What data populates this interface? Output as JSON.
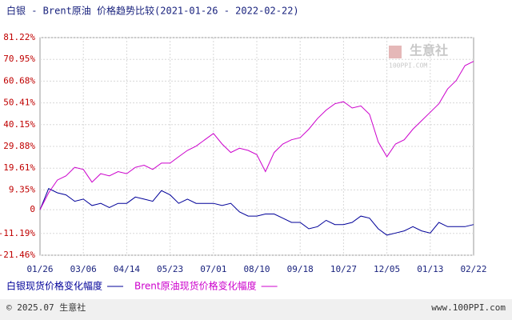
{
  "chart_data": {
    "type": "line",
    "title": "白银 - Brent原油 价格趋势比较(2021-01-26 - 2022-02-22)",
    "watermark": "生意社",
    "watermark_sub": "100PPI.COM",
    "footer_left": "© 2025.07 生意社",
    "footer_right": "www.100PPI.com",
    "categories": [
      "01/26",
      null,
      null,
      null,
      null,
      "03/06",
      null,
      null,
      null,
      null,
      "04/14",
      null,
      null,
      null,
      null,
      "05/23",
      null,
      null,
      null,
      null,
      "07/01",
      null,
      null,
      null,
      null,
      "08/10",
      null,
      null,
      null,
      null,
      "09/18",
      null,
      null,
      null,
      null,
      "10/27",
      null,
      null,
      null,
      null,
      "12/05",
      null,
      null,
      null,
      null,
      "01/13",
      null,
      null,
      null,
      null,
      "02/22"
    ],
    "ylim": [
      -21.46,
      81.22
    ],
    "yticks": [
      {
        "value": -21.46,
        "label": "-21.46%"
      },
      {
        "value": -11.19,
        "label": "-11.19%"
      },
      0,
      {
        "value": 9.35,
        "label": "9.35%"
      },
      {
        "value": 19.61,
        "label": "19.61%"
      },
      {
        "value": 29.88,
        "label": "29.88%"
      },
      {
        "value": 40.15,
        "label": "40.15%"
      },
      {
        "value": 50.41,
        "label": "50.41%"
      },
      {
        "value": 60.68,
        "label": "60.68%"
      },
      {
        "value": 70.95,
        "label": "70.95%"
      },
      {
        "value": 81.22,
        "label": "81.22%"
      }
    ],
    "grid": true,
    "series": [
      {
        "name": "白银现货价格变化幅度",
        "color": "#000099",
        "values": [
          0,
          10,
          8,
          7,
          4,
          5,
          2,
          3,
          1,
          3,
          3,
          6,
          5,
          4,
          9,
          7,
          3,
          5,
          3,
          3,
          3,
          2,
          3,
          -1,
          -3,
          -3,
          -2,
          -2,
          -4,
          -6,
          -6,
          -9,
          -8,
          -5,
          -7,
          -7,
          -6,
          -3,
          -4,
          -9,
          -12,
          -11,
          -10,
          -8,
          -10,
          -11,
          -6,
          -8,
          -8,
          -8,
          -7
        ]
      },
      {
        "name": "Brent原油现货价格变化幅度",
        "color": "#cc00cc",
        "values": [
          0,
          8,
          14,
          16,
          20,
          19,
          13,
          17,
          16,
          18,
          17,
          20,
          21,
          19,
          22,
          22,
          25,
          28,
          30,
          33,
          36,
          31,
          27,
          29,
          28,
          26,
          18,
          27,
          31,
          33,
          34,
          38,
          43,
          47,
          50,
          51,
          48,
          49,
          45,
          32,
          25,
          31,
          33,
          38,
          42,
          46,
          50,
          57,
          61,
          68,
          70
        ]
      }
    ]
  }
}
